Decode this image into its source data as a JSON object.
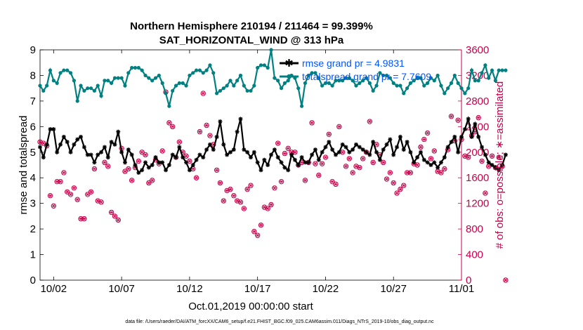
{
  "chart_data": {
    "type": "line",
    "title": "Northern Hemisphere 210194 / 211464 = 99.399%",
    "subtitle": "SAT_HORIZONTAL_WIND @ 313 hPa",
    "xlabel": "Oct.01,2019 00:00:00 start",
    "ylabel": "rmse and totalspread",
    "ylabel_right": "# of obs: o=possible; ∗=assimilated",
    "x_ticks": [
      "10/02",
      "10/07",
      "10/12",
      "10/17",
      "10/22",
      "10/27",
      "11/01"
    ],
    "x_tick_days": [
      1,
      6,
      11,
      16,
      21,
      26,
      31
    ],
    "xlim_days": [
      0,
      31
    ],
    "ylim": [
      0,
      9
    ],
    "y_ticks": [
      0,
      1,
      2,
      3,
      4,
      5,
      6,
      7,
      8,
      9
    ],
    "ylim_right": [
      0,
      3600
    ],
    "y_ticks_right": [
      0,
      400,
      800,
      1200,
      1600,
      2000,
      2400,
      2800,
      3200,
      3600
    ],
    "legend_position": "top-right",
    "colors": {
      "rmse": "#000000",
      "totalspread": "#008080",
      "obs": "#c8004a",
      "legend_text": "#0055ff"
    },
    "series": [
      {
        "name": "rmse grand pr = 4.9831",
        "axis": "left",
        "x_start_day": 0,
        "x_step_days": 0.25,
        "values": [
          5.2,
          4.8,
          5.3,
          5.9,
          5.9,
          5.0,
          5.3,
          5.6,
          5.4,
          5.0,
          5.3,
          5.5,
          5.6,
          5.2,
          4.9,
          4.9,
          4.6,
          4.9,
          5.0,
          5.2,
          4.8,
          5.4,
          5.3,
          5.8,
          5.0,
          4.6,
          5.1,
          4.9,
          4.5,
          4.2,
          4.3,
          4.6,
          4.4,
          4.5,
          4.8,
          4.6,
          4.6,
          4.3,
          4.5,
          4.9,
          4.8,
          5.2,
          4.8,
          4.6,
          4.3,
          4.5,
          4.7,
          4.9,
          4.8,
          5.1,
          5.3,
          5.1,
          5.6,
          6.2,
          5.3,
          4.9,
          5.0,
          5.1,
          5.8,
          6.3,
          5.1,
          5.0,
          4.8,
          5.0,
          4.6,
          4.3,
          4.7,
          4.5,
          4.9,
          5.1,
          4.8,
          4.6,
          4.4,
          4.3,
          4.9,
          4.7,
          4.5,
          4.8,
          4.6,
          4.6,
          4.9,
          5.1,
          4.7,
          5.0,
          5.2,
          5.4,
          5.1,
          4.9,
          5.0,
          5.3,
          5.2,
          5.0,
          5.1,
          5.3,
          5.2,
          5.1,
          5.0,
          4.9,
          5.4,
          5.0,
          4.7,
          5.1,
          5.3,
          5.5,
          4.9,
          5.2,
          5.6,
          5.1,
          5.4,
          5.0,
          4.6,
          4.8,
          5.0,
          4.7,
          4.6,
          4.5,
          4.6,
          4.4,
          4.6,
          4.8,
          5.2,
          5.4,
          5.6,
          5.0,
          5.6,
          5.9,
          6.3,
          5.6,
          6.1,
          5.6,
          5.2,
          4.9,
          4.6,
          4.5,
          4.4,
          4.3,
          4.5,
          4.9
        ]
      },
      {
        "name": "totalspread grand pr = 7.7609",
        "axis": "left",
        "x_start_day": 0,
        "x_step_days": 0.25,
        "values": [
          7.6,
          7.4,
          7.6,
          8.2,
          7.8,
          7.7,
          8.1,
          8.2,
          8.2,
          8.1,
          7.8,
          7.0,
          7.6,
          7.4,
          7.5,
          7.5,
          7.4,
          7.6,
          7.2,
          7.8,
          7.8,
          7.7,
          7.9,
          7.9,
          7.9,
          7.6,
          8.1,
          8.3,
          8.3,
          8.3,
          8.2,
          8.0,
          7.9,
          7.8,
          7.9,
          8.0,
          7.7,
          7.3,
          6.8,
          7.4,
          7.6,
          7.7,
          7.7,
          7.6,
          8.0,
          8.1,
          8.2,
          8.2,
          8.1,
          8.2,
          8.4,
          8.1,
          7.3,
          7.4,
          7.5,
          7.6,
          7.8,
          7.6,
          7.8,
          8.0,
          7.6,
          7.4,
          7.4,
          7.6,
          8.3,
          8.4,
          8.4,
          8.3,
          9.0,
          7.9,
          7.8,
          7.5,
          7.7,
          7.8,
          8.0,
          7.9,
          7.5,
          6.8,
          7.7,
          8.0,
          8.1,
          8.1,
          7.9,
          7.6,
          7.7,
          7.7,
          7.6,
          7.8,
          7.8,
          7.8,
          7.9,
          7.9,
          7.8,
          7.6,
          7.7,
          7.8,
          7.9,
          7.7,
          7.4,
          7.6,
          8.1,
          8.0,
          8.0,
          7.9,
          7.7,
          7.6,
          7.6,
          7.3,
          7.5,
          7.7,
          7.8,
          7.9,
          7.9,
          7.6,
          7.7,
          7.9,
          7.8,
          8.0,
          7.6,
          7.3,
          7.5,
          7.7,
          8.0,
          7.7,
          7.5,
          7.3,
          7.5,
          8.2,
          7.8,
          7.8,
          8.1,
          8.4,
          7.9,
          8.2,
          7.8,
          8.2,
          8.2,
          8.2
        ]
      },
      {
        "name": "obs_assimilated",
        "axis": "right",
        "x_start_day": 0,
        "x_step_days": 0.25,
        "values": [
          2160,
          2140,
          2100,
          1320,
          1160,
          1540,
          1540,
          1680,
          1380,
          1340,
          1440,
          1260,
          960,
          960,
          1340,
          1380,
          1740,
          1240,
          1220,
          1840,
          1780,
          1060,
          1000,
          940,
          2060,
          1700,
          1740,
          1560,
          1760,
          1860,
          2000,
          1960,
          1520,
          1560,
          1880,
          1820,
          2020,
          2940,
          2460,
          2400,
          1920,
          2160,
          2000,
          1940,
          1860,
          1740,
          1600,
          2320,
          2920,
          2420,
          2260,
          2120,
          1720,
          1520,
          1240,
          1400,
          1420,
          1320,
          1240,
          1220,
          1120,
          1420,
          1480,
          760,
          700,
          860,
          1140,
          1120,
          1180,
          1440,
          2140,
          1540,
          1980,
          2060,
          2000,
          2000,
          1800,
          1840,
          1560,
          1840,
          2460,
          1820,
          1640,
          1820,
          1920,
          2280,
          1540,
          1500,
          2400,
          2000,
          1780,
          1900,
          1680,
          1780,
          1760,
          1900,
          2000,
          2480,
          1840,
          2120,
          1960,
          1840,
          1580,
          1680,
          1520,
          1360,
          1420,
          1480,
          1680,
          1680,
          1820,
          1800,
          2080,
          2200,
          2300,
          1900,
          2020,
          1700,
          1680,
          1740,
          2040,
          2560,
          2180,
          2500,
          2200,
          1940,
          1920,
          2260,
          2320,
          2540,
          1860,
          1360,
          1780,
          1940,
          1760,
          1920,
          1780,
          0
        ]
      }
    ],
    "footnote": "data file: /Users/raeder/DAI/ATM_forcXX/CAM6_setup/f.e21.FHIST_BGC.f09_025.CAM6assim.011/Diags_NTrS_2019-10/obs_diag_output.nc"
  }
}
